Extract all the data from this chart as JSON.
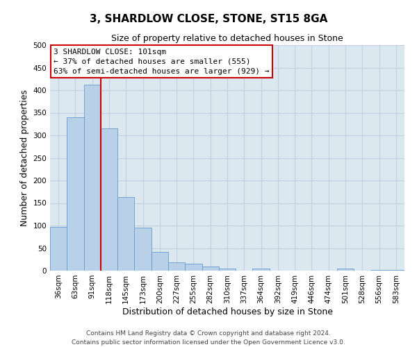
{
  "title": "3, SHARDLOW CLOSE, STONE, ST15 8GA",
  "subtitle": "Size of property relative to detached houses in Stone",
  "xlabel": "Distribution of detached houses by size in Stone",
  "ylabel": "Number of detached properties",
  "bar_labels": [
    "36sqm",
    "63sqm",
    "91sqm",
    "118sqm",
    "145sqm",
    "173sqm",
    "200sqm",
    "227sqm",
    "255sqm",
    "282sqm",
    "310sqm",
    "337sqm",
    "364sqm",
    "392sqm",
    "419sqm",
    "446sqm",
    "474sqm",
    "501sqm",
    "528sqm",
    "556sqm",
    "583sqm"
  ],
  "bar_values": [
    97,
    340,
    413,
    315,
    163,
    96,
    41,
    19,
    15,
    9,
    5,
    0,
    5,
    0,
    0,
    0,
    0,
    5,
    0,
    2,
    2
  ],
  "bar_color": "#b8d0e8",
  "bar_edgecolor": "#6699cc",
  "vline_x_idx": 2,
  "vline_color": "#cc0000",
  "ylim": [
    0,
    500
  ],
  "yticks": [
    0,
    50,
    100,
    150,
    200,
    250,
    300,
    350,
    400,
    450,
    500
  ],
  "annotation_title": "3 SHARDLOW CLOSE: 101sqm",
  "annotation_line1": "← 37% of detached houses are smaller (555)",
  "annotation_line2": "63% of semi-detached houses are larger (929) →",
  "annotation_box_facecolor": "#ffffff",
  "annotation_box_edgecolor": "#cc0000",
  "footer_line1": "Contains HM Land Registry data © Crown copyright and database right 2024.",
  "footer_line2": "Contains public sector information licensed under the Open Government Licence v3.0.",
  "plot_bg_color": "#dce8f0",
  "fig_bg_color": "#ffffff",
  "grid_color": "#c0d0de",
  "title_fontsize": 11,
  "subtitle_fontsize": 9,
  "axis_label_fontsize": 9,
  "tick_fontsize": 7.5,
  "annotation_fontsize": 8,
  "footer_fontsize": 6.5
}
